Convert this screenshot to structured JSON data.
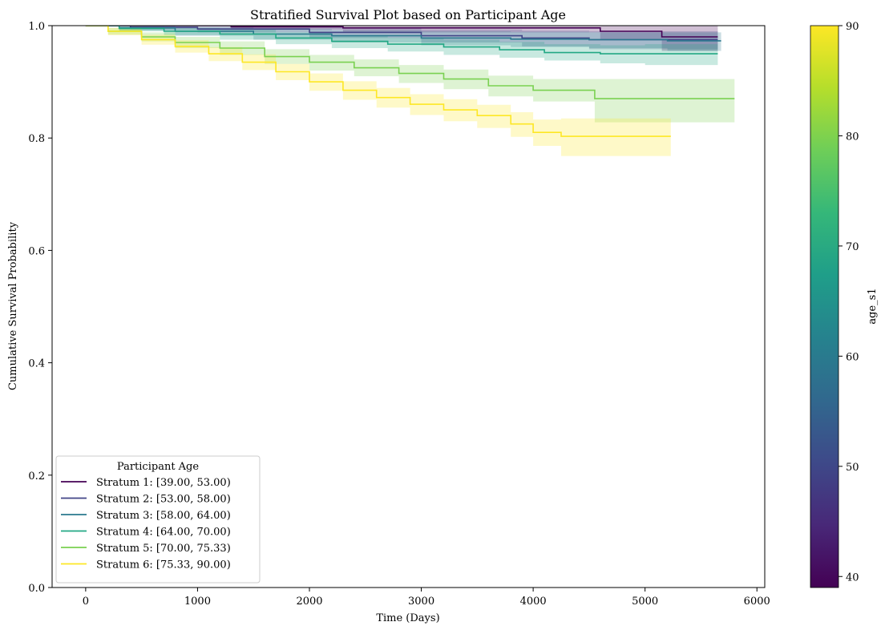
{
  "chart_data": {
    "type": "line",
    "title": "Stratified Survival Plot based on Participant Age",
    "xlabel": "Time (Days)",
    "ylabel": "Cumulative Survival Probability",
    "xlim": [
      -300,
      6070
    ],
    "ylim": [
      0.0,
      1.0
    ],
    "xticks": [
      0,
      1000,
      2000,
      3000,
      4000,
      5000,
      6000
    ],
    "yticks": [
      0.0,
      0.2,
      0.4,
      0.6,
      0.8,
      1.0
    ],
    "xtick_labels": [
      "0",
      "1000",
      "2000",
      "3000",
      "4000",
      "5000",
      "6000"
    ],
    "ytick_labels": [
      "0.0",
      "0.2",
      "0.4",
      "0.6",
      "0.8",
      "1.0"
    ],
    "grid": false,
    "legend": {
      "title": "Participant Age",
      "placement": "lower-left"
    },
    "series": [
      {
        "name": "Stratum 1: [39.00, 53.00)",
        "color": "#440154",
        "x": [
          0,
          1300,
          2300,
          4600,
          5150,
          5650
        ],
        "y": [
          1.0,
          0.998,
          0.996,
          0.99,
          0.98,
          0.98
        ],
        "ci_lower": [
          1.0,
          0.993,
          0.988,
          0.975,
          0.955,
          0.955
        ],
        "ci_upper": [
          1.0,
          1.0,
          1.0,
          1.0,
          1.0,
          1.0
        ]
      },
      {
        "name": "Stratum 2: [53.00, 58.00)",
        "color": "#414487",
        "x": [
          0,
          400,
          1000,
          2000,
          3000,
          3900,
          4500,
          5650
        ],
        "y": [
          1.0,
          0.997,
          0.994,
          0.988,
          0.982,
          0.978,
          0.975,
          0.975
        ],
        "ci_lower": [
          1.0,
          0.993,
          0.988,
          0.978,
          0.97,
          0.963,
          0.958,
          0.958
        ],
        "ci_upper": [
          1.0,
          1.0,
          1.0,
          0.997,
          0.993,
          0.991,
          0.99,
          0.99
        ]
      },
      {
        "name": "Stratum 3: [58.00, 64.00)",
        "color": "#2a788e",
        "x": [
          0,
          300,
          800,
          1500,
          2200,
          3000,
          3800,
          4500,
          5200,
          5680
        ],
        "y": [
          1.0,
          0.996,
          0.99,
          0.985,
          0.982,
          0.978,
          0.976,
          0.975,
          0.973,
          0.973
        ],
        "ci_lower": [
          1.0,
          0.991,
          0.982,
          0.975,
          0.97,
          0.965,
          0.962,
          0.96,
          0.955,
          0.955
        ],
        "ci_upper": [
          1.0,
          1.0,
          0.997,
          0.994,
          0.992,
          0.99,
          0.989,
          0.988,
          0.988,
          0.988
        ]
      },
      {
        "name": "Stratum 4: [64.00, 70.00)",
        "color": "#22a884",
        "x": [
          0,
          300,
          700,
          1200,
          1700,
          2200,
          2700,
          3200,
          3700,
          4100,
          4600,
          5000,
          5650
        ],
        "y": [
          1.0,
          0.995,
          0.99,
          0.985,
          0.978,
          0.972,
          0.967,
          0.962,
          0.957,
          0.952,
          0.95,
          0.95,
          0.95
        ],
        "ci_lower": [
          1.0,
          0.99,
          0.983,
          0.975,
          0.967,
          0.96,
          0.954,
          0.948,
          0.943,
          0.938,
          0.933,
          0.93,
          0.93
        ],
        "ci_upper": [
          1.0,
          0.999,
          0.996,
          0.993,
          0.988,
          0.983,
          0.979,
          0.975,
          0.971,
          0.967,
          0.965,
          0.967,
          0.967
        ]
      },
      {
        "name": "Stratum 5: [70.00, 75.33)",
        "color": "#7ad151",
        "x": [
          0,
          200,
          500,
          800,
          1200,
          1600,
          2000,
          2400,
          2800,
          3200,
          3600,
          4000,
          4550,
          5800
        ],
        "y": [
          1.0,
          0.99,
          0.98,
          0.97,
          0.96,
          0.945,
          0.935,
          0.925,
          0.915,
          0.905,
          0.893,
          0.885,
          0.87,
          0.87
        ],
        "ci_lower": [
          1.0,
          0.984,
          0.972,
          0.96,
          0.948,
          0.932,
          0.92,
          0.91,
          0.898,
          0.887,
          0.874,
          0.865,
          0.828,
          0.828
        ],
        "ci_upper": [
          1.0,
          0.996,
          0.988,
          0.98,
          0.972,
          0.958,
          0.948,
          0.94,
          0.93,
          0.922,
          0.911,
          0.905,
          0.905,
          0.905
        ]
      },
      {
        "name": "Stratum 6: [75.33, 90.00)",
        "color": "#fde725",
        "x": [
          0,
          200,
          500,
          800,
          1100,
          1400,
          1700,
          2000,
          2300,
          2600,
          2900,
          3200,
          3500,
          3800,
          4000,
          4250,
          5230
        ],
        "y": [
          1.0,
          0.99,
          0.975,
          0.963,
          0.95,
          0.935,
          0.918,
          0.9,
          0.885,
          0.872,
          0.86,
          0.85,
          0.84,
          0.825,
          0.81,
          0.803,
          0.803
        ],
        "ci_lower": [
          1.0,
          0.983,
          0.966,
          0.952,
          0.937,
          0.921,
          0.903,
          0.884,
          0.868,
          0.854,
          0.841,
          0.83,
          0.818,
          0.802,
          0.786,
          0.768,
          0.768
        ],
        "ci_upper": [
          1.0,
          0.996,
          0.984,
          0.974,
          0.962,
          0.949,
          0.932,
          0.915,
          0.901,
          0.889,
          0.878,
          0.869,
          0.859,
          0.846,
          0.833,
          0.835,
          0.835
        ]
      }
    ],
    "colorbar": {
      "label": "age_s1",
      "range": [
        39,
        90
      ],
      "ticks": [
        40,
        50,
        60,
        70,
        80,
        90
      ],
      "tick_labels": [
        "40",
        "50",
        "60",
        "70",
        "80",
        "90"
      ],
      "colormap": "viridis",
      "stops": [
        "#440154",
        "#482878",
        "#3e4989",
        "#31688e",
        "#26828e",
        "#1f9e89",
        "#35b779",
        "#6ece58",
        "#b5de2b",
        "#fde725"
      ]
    }
  }
}
